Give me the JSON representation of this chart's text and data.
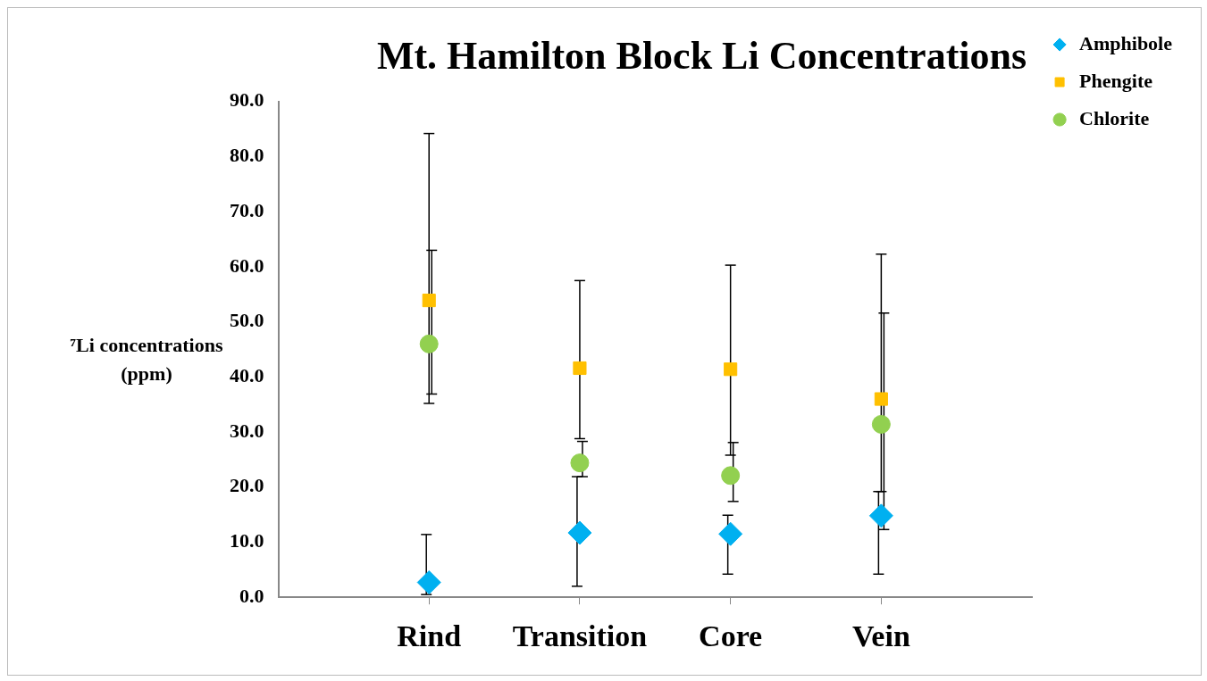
{
  "chart_data": {
    "type": "scatter",
    "title": "Mt. Hamilton Block Li Concentrations",
    "ylabel": "⁷Li concentrations (ppm)",
    "categories": [
      "Rind",
      "Transition",
      "Core",
      "Vein"
    ],
    "series": [
      {
        "name": "Amphibole",
        "color": "#00b0f0",
        "marker": "diamond",
        "values": [
          2.7,
          11.7,
          11.5,
          14.8
        ],
        "errors": [
          [
            0.5,
            11.4
          ],
          [
            2.0,
            21.9
          ],
          [
            4.2,
            14.9
          ],
          [
            4.2,
            19.2
          ]
        ]
      },
      {
        "name": "Phengite",
        "color": "#ffc000",
        "marker": "square",
        "values": [
          53.9,
          41.6,
          41.4,
          36.0
        ],
        "errors": [
          [
            35.2,
            84.2
          ],
          [
            28.8,
            57.5
          ],
          [
            25.8,
            60.3
          ],
          [
            19.2,
            62.3
          ]
        ]
      },
      {
        "name": "Chlorite",
        "color": "#92d050",
        "marker": "circle",
        "values": [
          46.0,
          24.4,
          22.1,
          31.4
        ],
        "errors": [
          [
            36.9,
            63.0
          ],
          [
            21.9,
            28.3
          ],
          [
            17.4,
            28.1
          ],
          [
            12.3,
            51.6
          ]
        ]
      }
    ],
    "ylim": [
      0,
      90
    ],
    "yticks": [
      {
        "value": 0,
        "label": "0.0"
      },
      {
        "value": 10,
        "label": "10.0"
      },
      {
        "value": 20,
        "label": "20.0"
      },
      {
        "value": 30,
        "label": "30.0"
      },
      {
        "value": 40,
        "label": "40.0"
      },
      {
        "value": 50,
        "label": "50.0"
      },
      {
        "value": 60,
        "label": "60.0"
      },
      {
        "value": 70,
        "label": "70.0"
      },
      {
        "value": 80,
        "label": "80.0"
      },
      {
        "value": 90,
        "label": "90.0"
      }
    ],
    "grid": false,
    "legend": "top right"
  }
}
